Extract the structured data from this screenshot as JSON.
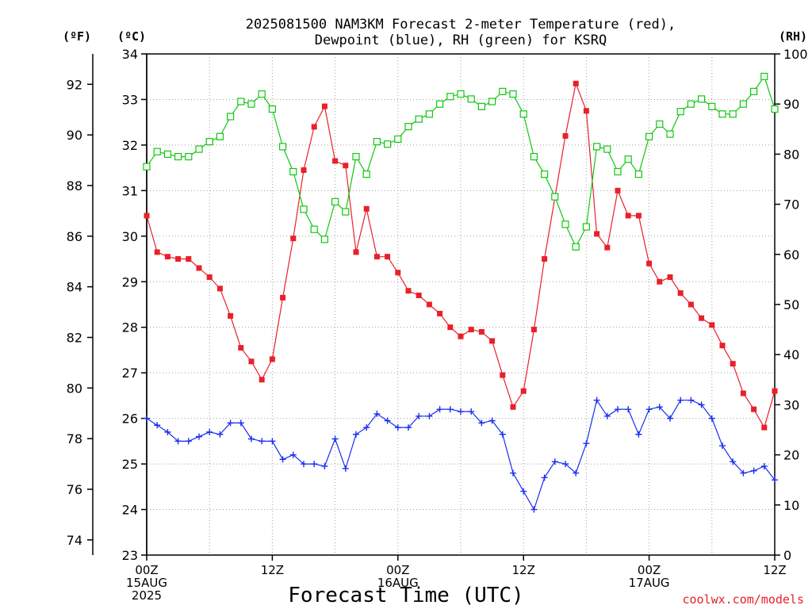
{
  "chart_data": {
    "type": "line",
    "title_line1": "2025081500 NAM3KM Forecast 2-meter Temperature (red),",
    "title_line2": "Dewpoint (blue), RH (green) for KSRQ",
    "xlabel": "Forecast Time (UTC)",
    "credit": "coolwx.com/models",
    "unit_f": "(ºF)",
    "unit_c": "(ºC)",
    "unit_rh": "(RH)",
    "x_start": "2025-08-15 00Z",
    "x_step_hours": 1,
    "xlim_hours": [
      0,
      60
    ],
    "x_ticks": [
      {
        "hour": 0,
        "lines": [
          "00Z",
          "15AUG",
          "2025"
        ]
      },
      {
        "hour": 12,
        "lines": [
          "12Z"
        ]
      },
      {
        "hour": 24,
        "lines": [
          "00Z",
          "16AUG"
        ]
      },
      {
        "hour": 36,
        "lines": [
          "12Z"
        ]
      },
      {
        "hour": 48,
        "lines": [
          "00Z",
          "17AUG"
        ]
      },
      {
        "hour": 60,
        "lines": [
          "12Z"
        ]
      }
    ],
    "celsius_axis": {
      "range": [
        23,
        34
      ],
      "ticks": [
        23,
        24,
        25,
        26,
        27,
        28,
        29,
        30,
        31,
        32,
        33,
        34
      ]
    },
    "fahrenheit_axis": {
      "ticks": [
        74,
        76,
        78,
        80,
        82,
        84,
        86,
        88,
        90,
        92
      ]
    },
    "rh_axis": {
      "range": [
        0,
        100
      ],
      "ticks": [
        0,
        10,
        20,
        30,
        40,
        50,
        60,
        70,
        80,
        90,
        100
      ]
    },
    "grid": true,
    "colors": {
      "temperature": "#e8202a",
      "dewpoint": "#1a2ff0",
      "rh": "#10c810",
      "credit": "#e8202a"
    },
    "series": [
      {
        "name": "Temperature",
        "unit": "C",
        "marker": "filled-square",
        "values": [
          30.45,
          29.65,
          29.55,
          29.5,
          29.5,
          29.3,
          29.1,
          28.85,
          28.25,
          27.55,
          27.25,
          26.85,
          27.3,
          28.65,
          29.95,
          31.45,
          32.4,
          32.85,
          31.65,
          31.55,
          29.65,
          30.6,
          29.55,
          29.55,
          29.2,
          28.8,
          28.7,
          28.5,
          28.3,
          28.0,
          27.8,
          27.95,
          27.9,
          27.7,
          26.95,
          26.25,
          26.6,
          27.95,
          29.5,
          30.85,
          32.2,
          33.35,
          32.75,
          30.05,
          29.75,
          31.0,
          30.45,
          30.45,
          29.4,
          29.0,
          29.1,
          28.75,
          28.5,
          28.2,
          28.05,
          27.6,
          27.2,
          26.55,
          26.2,
          25.8,
          26.6
        ]
      },
      {
        "name": "Dewpoint",
        "unit": "C",
        "marker": "plus",
        "values": [
          26.0,
          25.85,
          25.7,
          25.5,
          25.5,
          25.6,
          25.7,
          25.65,
          25.9,
          25.9,
          25.55,
          25.5,
          25.5,
          25.1,
          25.2,
          25.0,
          25.0,
          24.95,
          25.55,
          24.9,
          25.65,
          25.8,
          26.1,
          25.95,
          25.8,
          25.8,
          26.05,
          26.05,
          26.2,
          26.2,
          26.15,
          26.15,
          25.9,
          25.95,
          25.65,
          24.8,
          24.4,
          24.0,
          24.7,
          25.05,
          25.0,
          24.8,
          25.45,
          26.4,
          26.05,
          26.2,
          26.2,
          25.65,
          26.2,
          26.25,
          26.0,
          26.4,
          26.4,
          26.3,
          26.0,
          25.4,
          25.05,
          24.8,
          24.85,
          24.95,
          24.65
        ]
      },
      {
        "name": "RH",
        "unit": "%",
        "marker": "open-square",
        "values": [
          77.5,
          80.5,
          80,
          79.5,
          79.5,
          81,
          82.5,
          83.5,
          87.5,
          90.5,
          90,
          92,
          89,
          81.5,
          76.5,
          69,
          65,
          63,
          70.5,
          68.5,
          79.5,
          76,
          82.5,
          82,
          83,
          85.5,
          87,
          88,
          90,
          91.5,
          92,
          91,
          89.5,
          90.5,
          92.5,
          92,
          88,
          79.5,
          76,
          71.5,
          66,
          61.5,
          65.5,
          81.5,
          81,
          76.5,
          79,
          76,
          83.5,
          86,
          84,
          88.5,
          90,
          91,
          89.5,
          88,
          88,
          90,
          92.5,
          95.5,
          89
        ]
      }
    ]
  }
}
